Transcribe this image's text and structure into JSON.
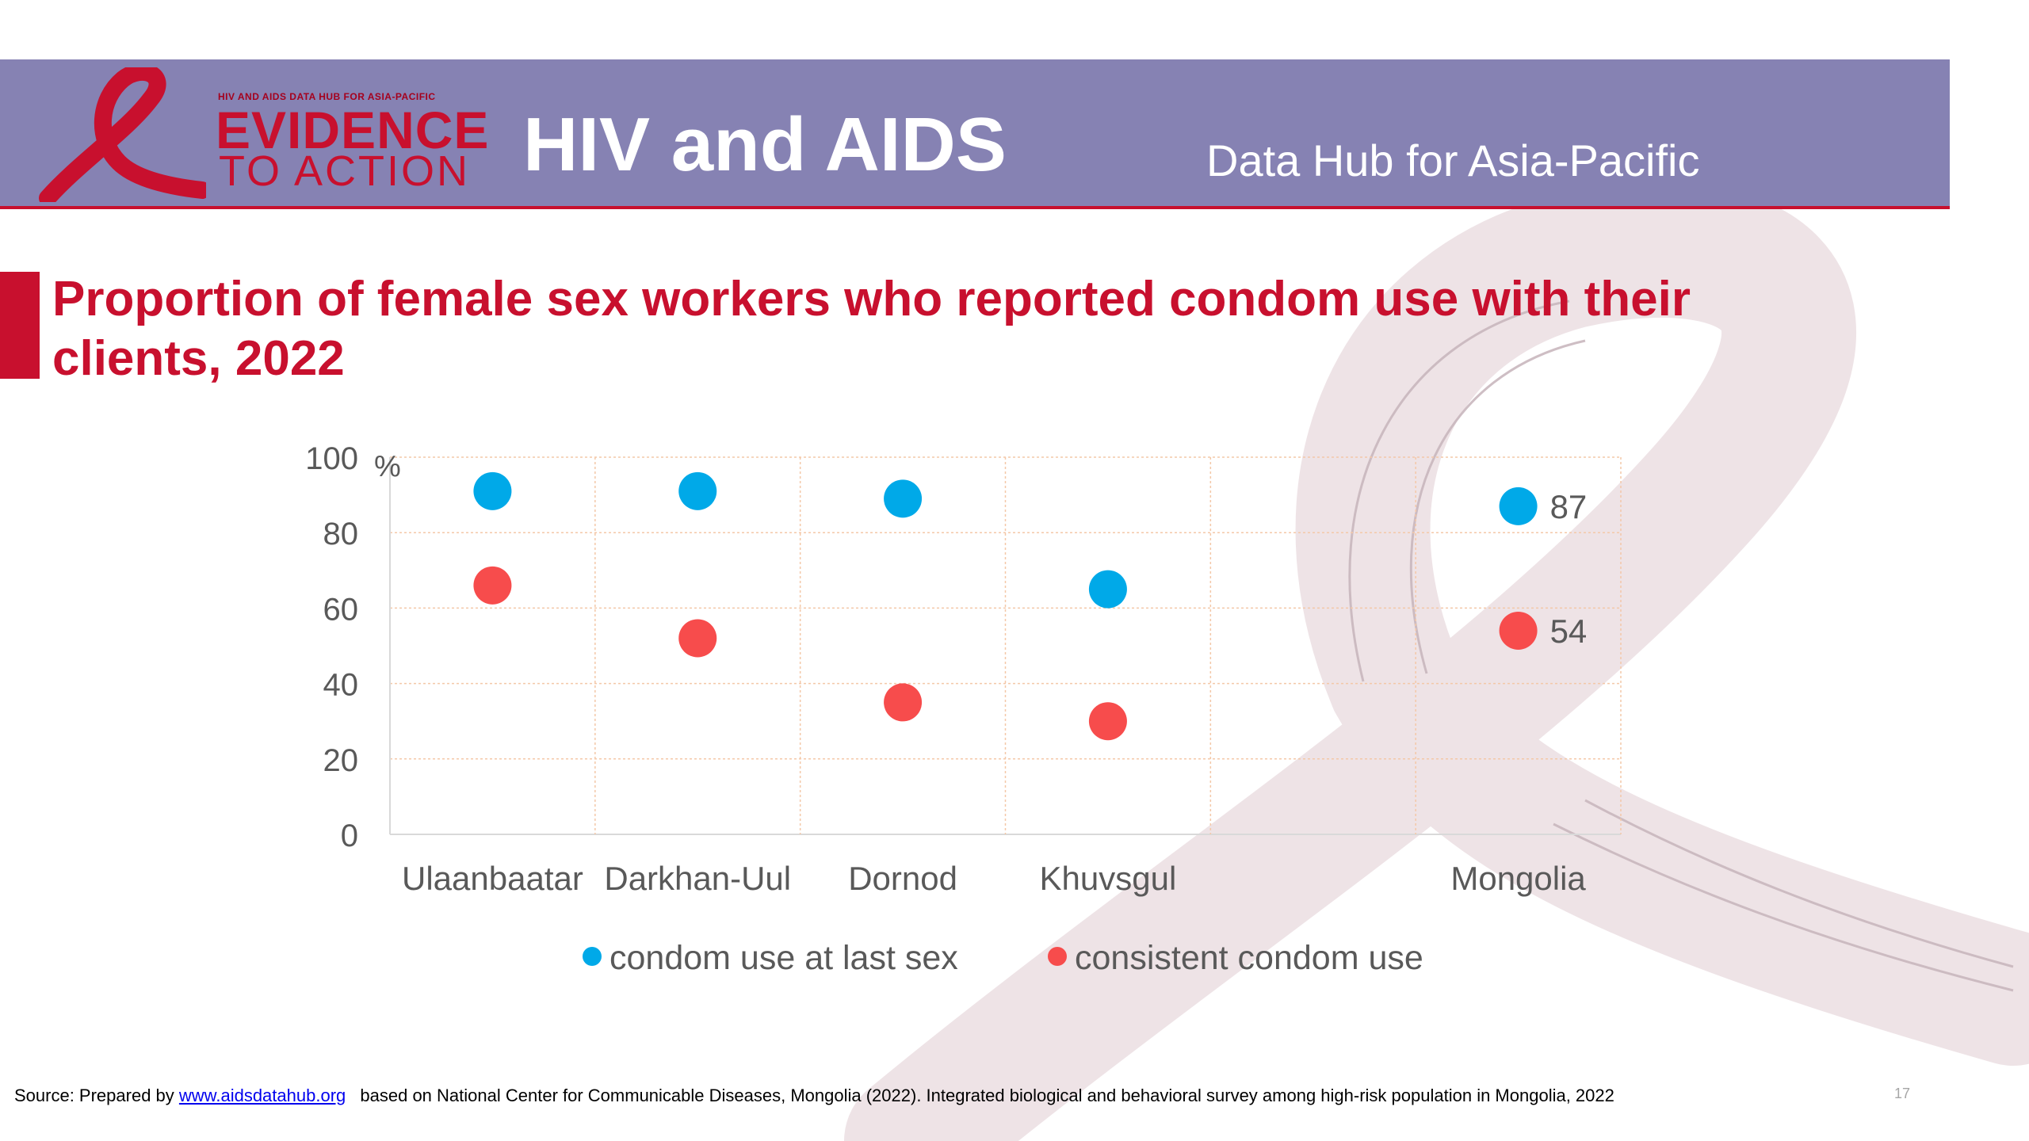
{
  "banner": {
    "logo_caption": "HIV AND AIDS DATA HUB FOR ASIA-PACIFIC",
    "logo_line1": "EVIDENCE",
    "logo_line2": "TO ACTION",
    "title": "HIV and AIDS",
    "subtitle": "Data Hub for Asia-Pacific"
  },
  "slide": {
    "title": "Proportion of female sex workers who reported condom use with their clients, 2022"
  },
  "chart_data": {
    "type": "scatter",
    "title": "Proportion of female sex workers who reported condom use with their clients, 2022",
    "ylabel": "%",
    "xlabel": "",
    "ylim": [
      0,
      100
    ],
    "y_ticks": [
      "0",
      "20",
      "40",
      "60",
      "80",
      "100"
    ],
    "categories": [
      "Ulaanbaatar",
      "Darkhan-Uul",
      "Dornod",
      "Khuvsgul",
      "",
      "Mongolia"
    ],
    "series": [
      {
        "name": "condom use at last sex",
        "color": "#00a9e8",
        "values": [
          91,
          91,
          89,
          65,
          null,
          87
        ]
      },
      {
        "name": "consistent condom use",
        "color": "#f74c4c",
        "values": [
          66,
          52,
          35,
          30,
          null,
          54
        ]
      }
    ],
    "data_labels": [
      {
        "series": 0,
        "category": 5,
        "text": "87"
      },
      {
        "series": 1,
        "category": 5,
        "text": "54"
      }
    ],
    "grid": true,
    "legend_position": "bottom"
  },
  "footer": {
    "prefix": "Source: Prepared by",
    "link": "www.aidsdatahub.org",
    "rest": "based on National Center for Communicable Diseases, Mongolia (2022). Integrated biological and behavioral survey among high-risk population in Mongolia, 2022",
    "page_number": "17"
  },
  "colors": {
    "banner": "#8682b3",
    "accent_red": "#c8102e",
    "ribbon": "#e8d9de"
  }
}
